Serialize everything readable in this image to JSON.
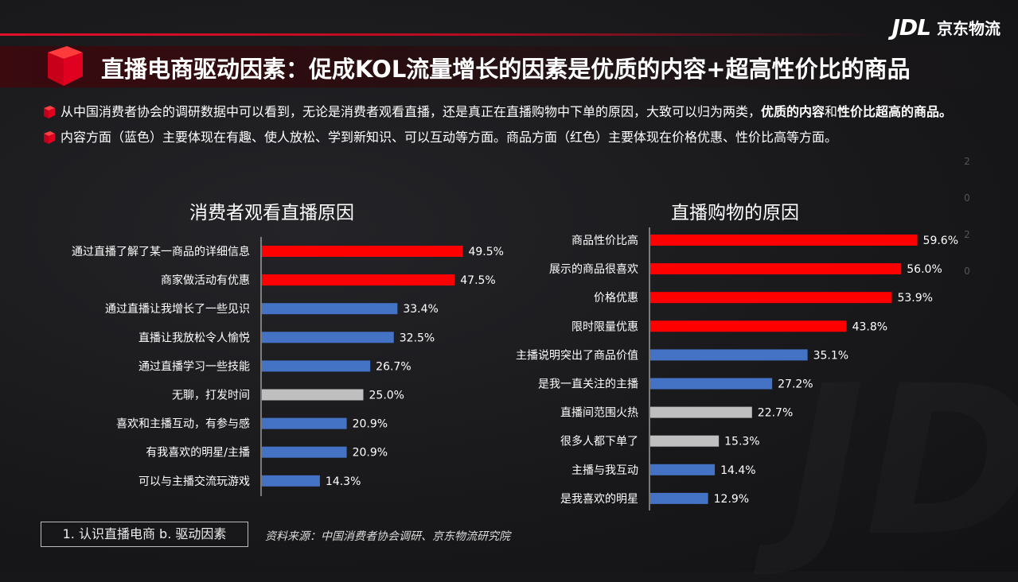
{
  "brand": {
    "logo_mark": "JDL",
    "logo_text": "京东物流"
  },
  "title": "直播电商驱动因素：促成KOL流量增长的因素是优质的内容+超高性价比的商品",
  "bullets": {
    "b1_text": "从中国消费者协会的调研数据中可以看到，无论是消费者观看直播，还是真正在直播购物中下单的原因，大致可以归为两类，",
    "b1_bold1": "优质的内容",
    "b1_mid": "和",
    "b1_bold2": "性价比超高的商品。",
    "b2_text": "内容方面（蓝色）主要体现在有趣、使人放松、学到新知识、可以互动等方面。商品方面（红色）主要体现在价格优惠、性价比高等方面。"
  },
  "colors": {
    "red": "#ff0000",
    "blue": "#4472c4",
    "gray": "#bfbfbf",
    "accent": "#e0102a"
  },
  "footer": {
    "nav": "1. 认识直播电商  b. 驱动因素",
    "source": "资料来源：中国消费者协会调研、京东物流研究院"
  },
  "decor": {
    "vertical": [
      "2",
      "0",
      "2",
      "0"
    ]
  },
  "chart_data": [
    {
      "type": "bar",
      "orientation": "horizontal",
      "title": "消费者观看直播原因",
      "unit": "%",
      "categories": [
        "通过直播了解了某一商品的详细信息",
        "商家做活动有优惠",
        "通过直播让我增长了一些见识",
        "直播让我放松令人愉悦",
        "通过直播学习一些技能",
        "无聊，打发时间",
        "喜欢和主播互动，有参与感",
        "有我喜欢的明星/主播",
        "可以与主播交流玩游戏"
      ],
      "values": [
        49.5,
        47.5,
        33.4,
        32.5,
        26.7,
        25.0,
        20.9,
        20.9,
        14.3
      ],
      "labels": [
        "49.5%",
        "47.5%",
        "33.4%",
        "32.5%",
        "26.7%",
        "25.0%",
        "20.9%",
        "20.9%",
        "14.3%"
      ],
      "bar_colors": [
        "red",
        "red",
        "blue",
        "blue",
        "blue",
        "gray",
        "blue",
        "blue",
        "blue"
      ]
    },
    {
      "type": "bar",
      "orientation": "horizontal",
      "title": "直播购物的原因",
      "unit": "%",
      "categories": [
        "商品性价比高",
        "展示的商品很喜欢",
        "价格优惠",
        "限时限量优惠",
        "主播说明突出了商品价值",
        "是我一直关注的主播",
        "直播间范围火热",
        "很多人都下单了",
        "主播与我互动",
        "是我喜欢的明星"
      ],
      "values": [
        59.6,
        56.0,
        53.9,
        43.8,
        35.1,
        27.2,
        22.7,
        15.3,
        14.4,
        12.9
      ],
      "labels": [
        "59.6%",
        "56.0%",
        "53.9%",
        "43.8%",
        "35.1%",
        "27.2%",
        "22.7%",
        "15.3%",
        "14.4%",
        "12.9%"
      ],
      "bar_colors": [
        "red",
        "red",
        "red",
        "red",
        "blue",
        "blue",
        "gray",
        "gray",
        "blue",
        "blue"
      ]
    }
  ]
}
